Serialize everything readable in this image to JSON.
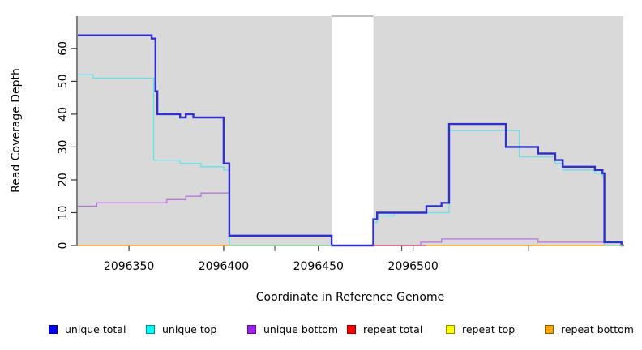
{
  "axes": {
    "x": {
      "label": "Coordinate in Reference Genome",
      "tick_labels": [
        "2096350",
        "2096400",
        "2096450",
        "2096500"
      ],
      "tick_values": [
        2096350,
        2096400,
        2096450,
        2096500
      ],
      "minor_tick_values": [
        2096427,
        2096494,
        2096561
      ],
      "range": [
        2096323,
        2096611
      ]
    },
    "y": {
      "label": "Read Coverage Depth",
      "tick_labels": [
        "0",
        "10",
        "20",
        "30",
        "40",
        "50",
        "60"
      ],
      "tick_values": [
        0,
        10,
        20,
        30,
        40,
        50,
        60
      ],
      "range": [
        0,
        70
      ]
    }
  },
  "legend": {
    "items": [
      {
        "label": "unique total",
        "color": "#0000ff"
      },
      {
        "label": "unique top",
        "color": "#00ffff"
      },
      {
        "label": "unique bottom",
        "color": "#a020f0"
      },
      {
        "label": "repeat total",
        "color": "#ff0000"
      },
      {
        "label": "repeat top",
        "color": "#ffff00"
      },
      {
        "label": "repeat bottom",
        "color": "#ffa500"
      }
    ]
  },
  "chart_data": {
    "type": "line",
    "step": "after",
    "title": "",
    "xlabel": "Coordinate in Reference Genome",
    "ylabel": "Read Coverage Depth",
    "xlim": [
      2096323,
      2096611
    ],
    "ylim": [
      0,
      70
    ],
    "grid": false,
    "plot_background": "#d9d9d9",
    "masked_region": {
      "from": 2096457,
      "to": 2096479
    },
    "line_colors": {
      "blue": "#3030cf",
      "cyan": "#63e3e9",
      "purple": "#b875e0",
      "orange": "#ffa020",
      "green": "#90d890",
      "crimson": "#cc5b80"
    },
    "series": [
      {
        "name": "unique total",
        "color_key": "blue",
        "width": 2.4,
        "draw": "path",
        "points": [
          [
            2096323,
            64
          ],
          [
            2096362,
            63
          ],
          [
            2096364,
            47
          ],
          [
            2096365,
            40
          ],
          [
            2096377,
            39
          ],
          [
            2096380,
            40
          ],
          [
            2096384,
            39
          ],
          [
            2096400,
            25
          ],
          [
            2096403,
            3
          ],
          [
            2096457,
            0
          ],
          [
            2096479,
            8
          ],
          [
            2096481,
            10
          ],
          [
            2096507,
            12
          ],
          [
            2096515,
            13
          ],
          [
            2096519,
            37
          ],
          [
            2096549,
            30
          ],
          [
            2096566,
            28
          ],
          [
            2096575,
            26
          ],
          [
            2096579,
            24
          ],
          [
            2096596,
            23
          ],
          [
            2096600,
            22
          ],
          [
            2096601,
            1
          ],
          [
            2096610,
            0
          ],
          [
            2096611,
            0
          ]
        ]
      },
      {
        "name": "unique top",
        "color_key": "cyan",
        "width": 1.3,
        "draw": "path",
        "points": [
          [
            2096323,
            52
          ],
          [
            2096331,
            51
          ],
          [
            2096363,
            26
          ],
          [
            2096377,
            25
          ],
          [
            2096388,
            24
          ],
          [
            2096400,
            23
          ],
          [
            2096403,
            0
          ],
          [
            2096479,
            7
          ],
          [
            2096481,
            9
          ],
          [
            2096490,
            10
          ],
          [
            2096519,
            35
          ],
          [
            2096556,
            27
          ],
          [
            2096575,
            25
          ],
          [
            2096579,
            23
          ],
          [
            2096596,
            22
          ],
          [
            2096600,
            21
          ],
          [
            2096601,
            0
          ],
          [
            2096611,
            0
          ]
        ]
      },
      {
        "name": "unique bottom",
        "color_key": "purple",
        "width": 1.3,
        "draw": "path",
        "points": [
          [
            2096323,
            12
          ],
          [
            2096333,
            13
          ],
          [
            2096370,
            14
          ],
          [
            2096380,
            15
          ],
          [
            2096388,
            16
          ],
          [
            2096403,
            0
          ],
          [
            2096504,
            1
          ],
          [
            2096515,
            2
          ],
          [
            2096566,
            1
          ],
          [
            2096610,
            0
          ],
          [
            2096611,
            0
          ]
        ]
      },
      {
        "name": "repeat total",
        "color_key": "crimson",
        "width": 1.3,
        "draw": "zero",
        "points": [
          [
            2096323,
            0
          ],
          [
            2096611,
            0
          ]
        ]
      },
      {
        "name": "repeat top",
        "color_key": "green",
        "width": 1.3,
        "draw": "zero",
        "points": [
          [
            2096323,
            0
          ],
          [
            2096611,
            0
          ]
        ]
      },
      {
        "name": "repeat bottom",
        "color_key": "orange",
        "width": 1.3,
        "draw": "zero",
        "points": [
          [
            2096323,
            0
          ],
          [
            2096611,
            0
          ]
        ]
      }
    ],
    "zero_line_segments": [
      {
        "from": 2096323,
        "to": 2096403,
        "color_key": "orange"
      },
      {
        "from": 2096403,
        "to": 2096457,
        "color_key": "green"
      },
      {
        "from": 2096479,
        "to": 2096507,
        "color_key": "crimson"
      },
      {
        "from": 2096507,
        "to": 2096601,
        "color_key": "orange"
      },
      {
        "from": 2096601,
        "to": 2096611,
        "color_key": "green"
      }
    ]
  }
}
